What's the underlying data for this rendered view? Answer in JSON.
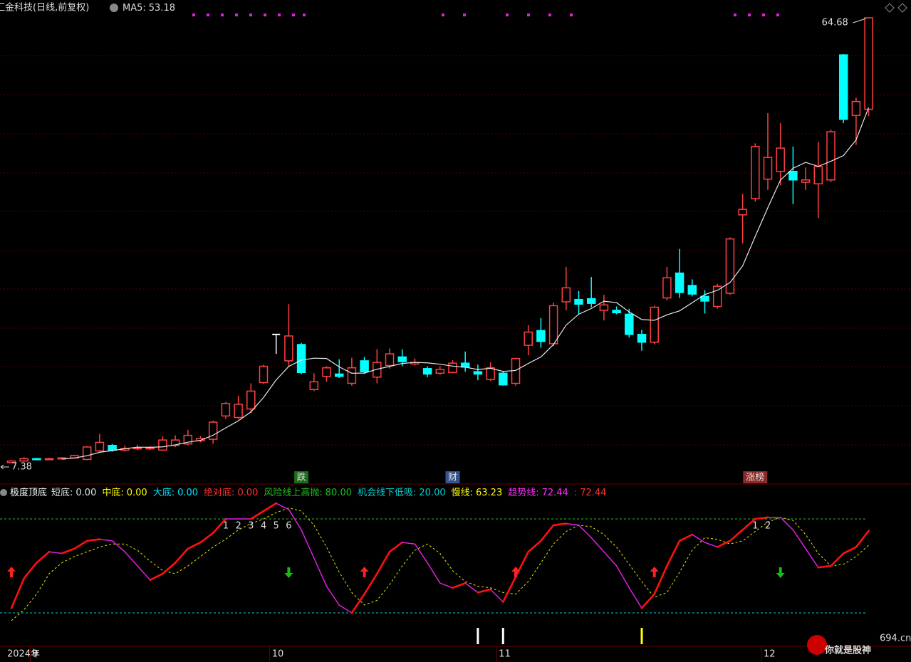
{
  "header": {
    "title": "汇金科技(日线,前复权)",
    "ma_label": "MA5:",
    "ma_value": 53.18
  },
  "watermark": {
    "site": "694.cn",
    "slogan": "你就是股神"
  },
  "chart_data": [
    {
      "type": "candlestick",
      "categories": [
        "2024年",
        null,
        "9",
        null,
        null,
        null,
        null,
        null,
        null,
        null,
        null,
        null,
        null,
        null,
        null,
        null,
        null,
        null,
        null,
        null,
        null,
        "10",
        null,
        null,
        null,
        null,
        null,
        null,
        null,
        null,
        null,
        null,
        null,
        null,
        null,
        null,
        null,
        null,
        null,
        "11",
        null,
        null,
        null,
        null,
        null,
        null,
        null,
        null,
        null,
        null,
        null,
        null,
        null,
        null,
        null,
        null,
        null,
        null,
        null,
        null,
        "12",
        null,
        null,
        null,
        null,
        null,
        null,
        null,
        null
      ],
      "open": [
        7.4,
        7.6,
        7.9,
        7.8,
        7.9,
        8.0,
        7.8,
        8.9,
        9.6,
        9.0,
        9.2,
        9.2,
        9.0,
        9.6,
        9.8,
        10.2,
        10.4,
        13.4,
        13.2,
        14.3,
        17.7,
        23.9,
        20.5,
        22.6,
        16.8,
        18.5,
        18.8,
        17.6,
        20.5,
        18.4,
        19.9,
        21.0,
        20.1,
        19.5,
        18.9,
        19.0,
        20.2,
        19.1,
        18.1,
        18.9,
        17.6,
        22.5,
        24.4,
        22.7,
        28.1,
        28.4,
        28.5,
        27.0,
        27.0,
        26.5,
        23.9,
        22.9,
        28.6,
        31.8,
        30.2,
        28.8,
        27.5,
        29.2,
        39.3,
        41.4,
        43.9,
        44.9,
        44.9,
        43.5,
        43.3,
        43.8,
        59.9,
        52.1,
        52.9
      ],
      "close": [
        7.6,
        7.9,
        7.8,
        7.9,
        8.0,
        8.3,
        9.4,
        10.0,
        9.0,
        9.2,
        9.3,
        9.3,
        10.3,
        10.3,
        10.9,
        10.5,
        12.6,
        15.0,
        14.9,
        16.6,
        19.8,
        23.9,
        23.7,
        19.0,
        17.8,
        19.6,
        18.5,
        19.6,
        19.1,
        20.3,
        21.4,
        20.4,
        20.3,
        18.8,
        19.4,
        20.2,
        19.7,
        18.8,
        19.6,
        17.4,
        20.8,
        24.2,
        23.0,
        27.6,
        29.9,
        27.8,
        27.9,
        27.7,
        26.7,
        23.9,
        22.9,
        27.4,
        31.2,
        29.3,
        29.1,
        28.2,
        30.1,
        36.2,
        40.0,
        48.1,
        46.7,
        47.9,
        43.8,
        43.8,
        45.5,
        50.0,
        51.6,
        53.9,
        64.68
      ],
      "high": [
        7.7,
        8.1,
        8.0,
        8.0,
        8.1,
        8.4,
        9.5,
        11.1,
        9.8,
        9.6,
        9.7,
        9.5,
        10.8,
        10.9,
        11.6,
        10.8,
        12.8,
        15.2,
        16.0,
        17.6,
        20.0,
        23.9,
        27.8,
        22.8,
        18.9,
        19.8,
        20.7,
        20.9,
        21.0,
        22.0,
        22.1,
        22.0,
        20.8,
        19.8,
        19.8,
        20.6,
        21.7,
        20.0,
        20.3,
        19.1,
        20.9,
        25.1,
        26.0,
        28.0,
        32.6,
        29.5,
        31.3,
        29.0,
        27.5,
        27.2,
        24.5,
        27.6,
        32.6,
        34.9,
        31.0,
        29.6,
        30.4,
        36.4,
        42.0,
        48.5,
        52.4,
        51.1,
        48.1,
        45.4,
        48.7,
        50.3,
        60.0,
        54.4,
        64.68
      ],
      "low": [
        7.38,
        7.5,
        7.7,
        7.7,
        7.8,
        7.9,
        7.7,
        8.7,
        8.8,
        8.8,
        9.0,
        9.0,
        8.9,
        9.4,
        9.6,
        10.0,
        9.8,
        13.0,
        13.0,
        13.8,
        17.5,
        21.4,
        19.8,
        18.8,
        16.6,
        17.8,
        18.3,
        17.3,
        18.8,
        17.6,
        19.5,
        19.8,
        19.9,
        18.4,
        18.7,
        18.9,
        19.1,
        18.0,
        17.9,
        17.3,
        17.3,
        21.2,
        22.2,
        22.4,
        27.0,
        26.5,
        27.4,
        25.7,
        26.5,
        23.5,
        21.8,
        22.6,
        28.3,
        28.6,
        28.8,
        26.6,
        27.2,
        29.0,
        35.6,
        41.0,
        42.5,
        43.1,
        40.7,
        42.5,
        38.9,
        43.5,
        51.1,
        48.3,
        52.0
      ],
      "up_color": "#ff4040",
      "down_color": "#00ffff",
      "flat_color": "#ffffff",
      "ma_period": 5,
      "ma_color": "#e8e8e8",
      "events": [
        {
          "index": 23,
          "text": "跌",
          "color": "#1d6b1d"
        },
        {
          "index": 35,
          "text": "财",
          "color": "#34548f"
        },
        {
          "index": 59,
          "text": "涨榜",
          "color": "#8a2a2a"
        }
      ]
    },
    {
      "type": "line",
      "title": "极度顶底",
      "ylim": [
        0,
        100
      ],
      "readouts": [
        {
          "name": "短底:",
          "value": 0,
          "label": "0.00",
          "color": "#e0e0e0"
        },
        {
          "name": "中底:",
          "value": 0,
          "label": "0.00",
          "color": "#ffff00"
        },
        {
          "name": "大底:",
          "value": 0,
          "label": "0.00",
          "color": "#00e5ff"
        },
        {
          "name": "绝对底:",
          "value": 0,
          "label": "0.00",
          "color": "#ff3030"
        },
        {
          "name": "风险线上高抛:",
          "value": 80,
          "label": "80.00",
          "color": "#22c022",
          "level": true
        },
        {
          "name": "机会线下低吸:",
          "value": 20,
          "label": "20.00",
          "color": "#00d0d0",
          "level": true
        },
        {
          "name": "慢线:",
          "value": 63.23,
          "color": "#ffff00"
        },
        {
          "name": "趋势线:",
          "value": 72.44,
          "color": "#ff30ff"
        },
        {
          "name": ":",
          "value": 72.44,
          "color": "#ff3030"
        }
      ],
      "series": [
        {
          "color": "#e020e0",
          "up_color": "#ff1010",
          "values": [
            23,
            42,
            52,
            59,
            58,
            61,
            66,
            67,
            66,
            59,
            50,
            41,
            45,
            52,
            61,
            65,
            71,
            80,
            80,
            80,
            85,
            90,
            86,
            73,
            55,
            37,
            25,
            20,
            32,
            45,
            59,
            65,
            64,
            52,
            39,
            36,
            39,
            33,
            35,
            27,
            43,
            59,
            66,
            76,
            77,
            76,
            68,
            59,
            50,
            36,
            23,
            32,
            50,
            66,
            70,
            65,
            62,
            66,
            73,
            80,
            81,
            81,
            73,
            61,
            49,
            50,
            58,
            62,
            72.44
          ]
        },
        {
          "color": "#e8e800",
          "dashed": true,
          "values": [
            15,
            22,
            32,
            45,
            52,
            56,
            59,
            62,
            64,
            64,
            60,
            53,
            47,
            45,
            50,
            56,
            62,
            67,
            73,
            77,
            80,
            84,
            87,
            85,
            76,
            62,
            46,
            33,
            25,
            28,
            38,
            50,
            60,
            64,
            58,
            47,
            40,
            37,
            36,
            33,
            32,
            40,
            52,
            64,
            72,
            76,
            75,
            70,
            62,
            51,
            40,
            30,
            33,
            46,
            60,
            68,
            67,
            64,
            66,
            72,
            78,
            81,
            79,
            70,
            58,
            50,
            51,
            56,
            63.23
          ]
        }
      ],
      "buy_signals": [
        0,
        28,
        40,
        51
      ],
      "sell_signals": [
        22,
        61
      ],
      "buy_color": "#ff2020",
      "sell_color": "#10c010",
      "counts": [
        {
          "index": 17,
          "text": "1"
        },
        {
          "index": 18,
          "text": "2"
        },
        {
          "index": 19,
          "text": "3"
        },
        {
          "index": 20,
          "text": "4"
        },
        {
          "index": 21,
          "text": "5"
        },
        {
          "index": 22,
          "text": "6"
        },
        {
          "index": 59,
          "text": "1"
        },
        {
          "index": 60,
          "text": "2"
        }
      ],
      "bars": [
        {
          "index": 37,
          "color": "#ffffff"
        },
        {
          "index": 39,
          "color": "#ffffff"
        },
        {
          "index": 50,
          "color": "#ffff00"
        }
      ]
    }
  ]
}
